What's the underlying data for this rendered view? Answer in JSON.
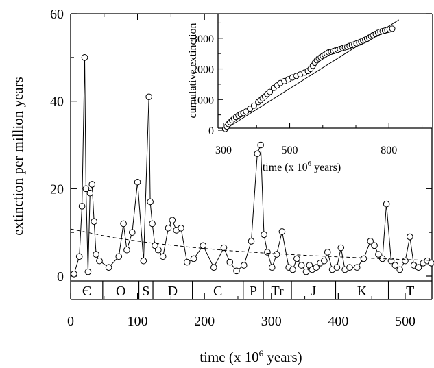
{
  "chart_data": [
    {
      "type": "line",
      "xlabel_main": "time (x 10",
      "xlabel_exp": "6",
      "xlabel_tail": " years)",
      "ylabel": "extinction per million years",
      "xlim": [
        0,
        540
      ],
      "ylim": [
        0,
        60
      ],
      "xticks": [
        0,
        100,
        200,
        300,
        400,
        500
      ],
      "yticks": [
        0,
        20,
        40,
        60
      ],
      "grid": false,
      "series": [
        {
          "style": "line-with-open-circles",
          "x": [
            5,
            13,
            17,
            21,
            23,
            26,
            29,
            32,
            35,
            38,
            43,
            57,
            72,
            79,
            84,
            92,
            100,
            109,
            117,
            119,
            122,
            126,
            131,
            138,
            146,
            152,
            158,
            165,
            174,
            184,
            198,
            214,
            229,
            238,
            248,
            259,
            270,
            279,
            284,
            289,
            294,
            301,
            308,
            316,
            326,
            332,
            338,
            345,
            352,
            357,
            361,
            367,
            373,
            379,
            384,
            391,
            398,
            404,
            410,
            417,
            428,
            438,
            448,
            454,
            460,
            466,
            472,
            479,
            485,
            492,
            500,
            507,
            513,
            520,
            527,
            533,
            539
          ],
          "y": [
            0.5,
            4.5,
            16,
            50,
            20,
            1,
            19,
            21,
            12.5,
            5,
            3.5,
            2,
            4.5,
            12,
            6,
            10,
            21.5,
            3.5,
            41,
            17,
            12,
            7,
            6,
            4.5,
            11,
            12.8,
            10.5,
            11,
            3.2,
            4,
            7,
            2,
            6.5,
            3.2,
            1.2,
            2.5,
            8,
            28,
            30,
            9.5,
            5.5,
            2,
            5,
            10.2,
            2,
            1.5,
            4,
            2.5,
            1,
            2.5,
            1.5,
            2,
            3,
            3.5,
            5.5,
            1.5,
            2,
            6.5,
            1.5,
            2,
            2,
            4,
            8,
            7,
            5,
            4,
            16.5,
            3.5,
            2.5,
            1.5,
            3.5,
            9,
            2.5,
            2,
            3,
            3.5,
            3
          ]
        },
        {
          "style": "dashed-fit-curve",
          "x": [
            0,
            60,
            120,
            180,
            240,
            300,
            360,
            420,
            480,
            540
          ],
          "y": [
            10.8,
            8.9,
            7.6,
            6.6,
            5.8,
            5.2,
            4.7,
            4.3,
            3.9,
            3.6
          ]
        }
      ],
      "periods": [
        {
          "label": "Є",
          "start": 0,
          "end": 48
        },
        {
          "label": "O",
          "start": 48,
          "end": 102
        },
        {
          "label": "S",
          "start": 102,
          "end": 123
        },
        {
          "label": "D",
          "start": 123,
          "end": 182
        },
        {
          "label": "C",
          "start": 182,
          "end": 258
        },
        {
          "label": "P",
          "start": 258,
          "end": 288
        },
        {
          "label": "Tr",
          "start": 288,
          "end": 330
        },
        {
          "label": "J",
          "start": 330,
          "end": 396
        },
        {
          "label": "K",
          "start": 396,
          "end": 475
        },
        {
          "label": "T",
          "start": 475,
          "end": 540
        }
      ]
    },
    {
      "type": "scatter",
      "role": "inset",
      "xlabel_main": "time (x 10",
      "xlabel_exp": "6",
      "xlabel_tail": " years)",
      "ylabel": "cumulative extinction",
      "xlim": [
        300,
        930
      ],
      "ylim": [
        0,
        3800
      ],
      "xticks": [
        300,
        500,
        800
      ],
      "yticks": [
        0,
        1000,
        2000,
        3000
      ],
      "series": [
        {
          "style": "open-circles",
          "x": [
            305,
            310,
            315,
            320,
            326,
            332,
            338,
            345,
            352,
            360,
            368,
            380,
            392,
            405,
            412,
            418,
            425,
            432,
            440,
            452,
            462,
            472,
            484,
            496,
            508,
            520,
            532,
            545,
            555,
            563,
            570,
            576,
            582,
            588,
            594,
            600,
            606,
            612,
            618,
            625,
            632,
            638,
            645,
            652,
            660,
            667,
            674,
            681,
            688,
            695,
            702,
            710,
            716,
            722,
            728,
            734,
            740,
            746,
            752,
            760,
            767,
            774,
            781,
            788,
            795,
            802,
            810
          ],
          "y": [
            40,
            120,
            200,
            260,
            320,
            380,
            430,
            480,
            520,
            560,
            610,
            700,
            800,
            920,
            980,
            1040,
            1100,
            1180,
            1250,
            1380,
            1460,
            1540,
            1600,
            1660,
            1720,
            1770,
            1820,
            1880,
            1930,
            2000,
            2100,
            2200,
            2280,
            2340,
            2380,
            2420,
            2460,
            2500,
            2540,
            2560,
            2580,
            2600,
            2620,
            2650,
            2680,
            2700,
            2720,
            2750,
            2780,
            2800,
            2830,
            2860,
            2890,
            2920,
            2950,
            2980,
            3020,
            3060,
            3100,
            3140,
            3180,
            3210,
            3230,
            3250,
            3270,
            3290,
            3310
          ]
        },
        {
          "style": "trend-line",
          "x": [
            300,
            830
          ],
          "y": [
            0,
            3600
          ]
        }
      ]
    }
  ]
}
